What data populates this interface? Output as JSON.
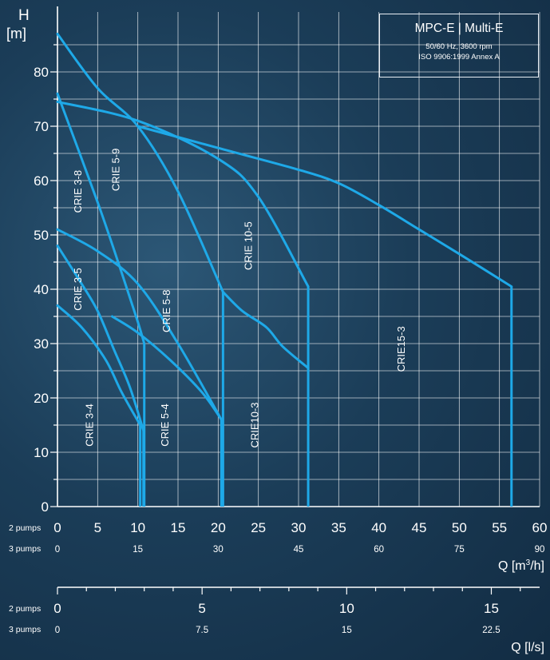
{
  "info_box": {
    "title": "MPC-E | Multi-E",
    "line1": "50/60 Hz, 3600 rpm",
    "line2": "ISO 9906:1999 Annex A"
  },
  "axes": {
    "y_symbol": "H",
    "y_unit": "[m]",
    "x_title": "Q [m³/h]",
    "x2_title": "Q [l/s]",
    "row_2pumps": "2 pumps",
    "row_3pumps": "3 pumps"
  },
  "colors": {
    "curve": "#1ea9e8",
    "grid": "#ffffff",
    "text": "#ffffff"
  },
  "chart_data": {
    "type": "line",
    "xlabel": "Q [m³/h]",
    "ylabel": "H [m]",
    "xlim": [
      0,
      60
    ],
    "ylim": [
      0,
      88
    ],
    "grid": true,
    "x_ticks_2pumps": [
      "0",
      "5",
      "10",
      "15",
      "20",
      "25",
      "30",
      "35",
      "40",
      "45",
      "50",
      "55",
      "60"
    ],
    "x_ticks_3pumps": [
      "0",
      "15",
      "30",
      "45",
      "60",
      "75",
      "90"
    ],
    "y_ticks": [
      "0",
      "10",
      "20",
      "30",
      "40",
      "50",
      "60",
      "70",
      "80"
    ],
    "secondary_axis": {
      "label": "Q [l/s]",
      "range": [
        0,
        16.67
      ],
      "ticks_2pumps": [
        "0",
        "5",
        "10",
        "15"
      ],
      "ticks_3pumps": [
        "0",
        "7.5",
        "15",
        "22.5"
      ]
    },
    "series": [
      {
        "name": "CRIE 3-8",
        "x": [
          0,
          5,
          8,
          10,
          10.8
        ],
        "y": [
          76,
          56,
          43,
          34,
          30
        ],
        "max_flow": 10.8
      },
      {
        "name": "CRIE 3-5",
        "x": [
          0,
          3,
          5,
          7,
          9,
          10.7
        ],
        "y": [
          48,
          41,
          36,
          29,
          22,
          14
        ],
        "max_flow": 10.7
      },
      {
        "name": "CRIE 3-4",
        "x": [
          0,
          3,
          6,
          8,
          10.3
        ],
        "y": [
          37,
          33,
          27,
          21,
          15
        ],
        "max_flow": 10.3
      },
      {
        "name": "CRIE 5-9",
        "x": [
          0,
          5,
          10,
          15,
          20.6
        ],
        "y": [
          87,
          77,
          70,
          58,
          39.5
        ],
        "max_flow": 20.6
      },
      {
        "name": "CRIE 5-8",
        "x": [
          0,
          5,
          10,
          15,
          20.4
        ],
        "y": [
          51,
          47,
          41,
          30,
          16
        ],
        "max_flow": 20.4
      },
      {
        "name": "CRIE 5-4",
        "x": [
          6.8,
          10,
          14,
          18,
          20.4
        ],
        "y": [
          35,
          32,
          27,
          21,
          16
        ],
        "max_flow": 20.4
      },
      {
        "name": "CRIE 10-5",
        "x": [
          0,
          10,
          20,
          25,
          31.2
        ],
        "y": [
          74.5,
          71,
          64,
          57,
          40.5
        ],
        "max_flow": 31.2
      },
      {
        "name": "CRIE10-3",
        "x": [
          20.6,
          23,
          26,
          28,
          31.2
        ],
        "y": [
          39.5,
          36,
          33,
          29.5,
          25.5
        ],
        "max_flow": 31.2
      },
      {
        "name": "CRIE15-3",
        "x": [
          10,
          20,
          30,
          35,
          40,
          45,
          50,
          56.5
        ],
        "y": [
          70,
          66,
          62,
          59.5,
          55.5,
          51,
          46.5,
          40.5
        ],
        "max_flow": 56.5
      }
    ]
  }
}
